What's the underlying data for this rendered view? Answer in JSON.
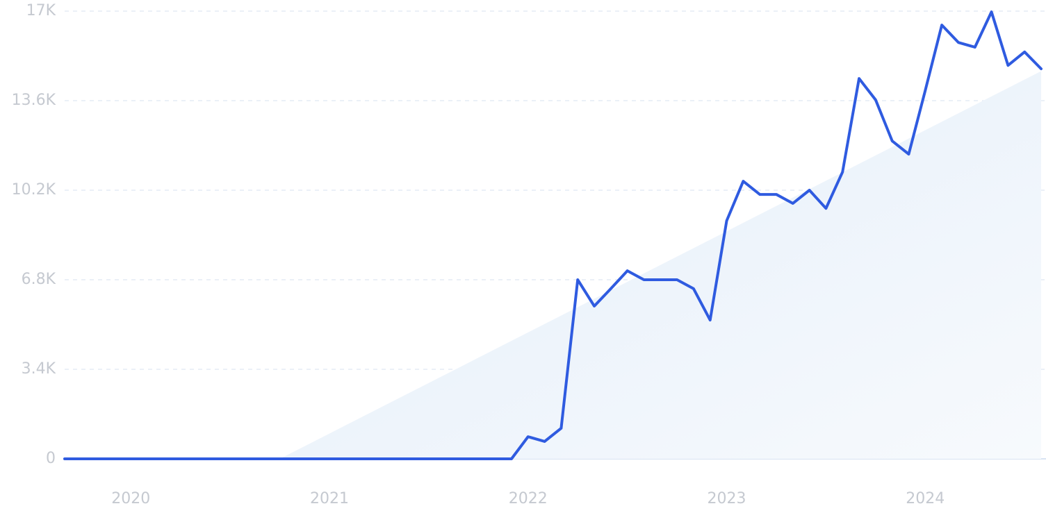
{
  "chart_data": {
    "type": "line",
    "categories": [
      null,
      null,
      null,
      null,
      "2020",
      null,
      null,
      null,
      null,
      null,
      null,
      null,
      null,
      null,
      null,
      null,
      "2021",
      null,
      null,
      null,
      null,
      null,
      null,
      null,
      null,
      null,
      null,
      null,
      "2022",
      null,
      null,
      null,
      null,
      null,
      null,
      null,
      null,
      null,
      null,
      null,
      "2023",
      null,
      null,
      null,
      null,
      null,
      null,
      null,
      null,
      null,
      null,
      null,
      "2024",
      null,
      null,
      null,
      null,
      null,
      null,
      null
    ],
    "values": [
      0,
      0,
      0,
      0,
      0,
      0,
      0,
      0,
      0,
      0,
      0,
      0,
      0,
      0,
      0,
      0,
      0,
      0,
      0,
      0,
      0,
      0,
      0,
      0,
      0,
      0,
      0,
      0,
      840,
      660,
      1160,
      6800,
      5800,
      6460,
      7140,
      6800,
      6800,
      6800,
      6460,
      5270,
      9040,
      10540,
      10040,
      10040,
      9700,
      10200,
      9510,
      10890,
      14440,
      13630,
      12070,
      11570,
      13990,
      16470,
      15810,
      15630,
      16970,
      14940,
      15450,
      14810
    ],
    "color": "#2f5be0",
    "trend": {
      "values": [
        null,
        null,
        null,
        null,
        null,
        null,
        null,
        null,
        null,
        null,
        null,
        null,
        null,
        0,
        320,
        640,
        960,
        1280,
        1600,
        1920,
        2240,
        2560,
        2880,
        3200,
        3520,
        3840,
        4160,
        4480,
        4800,
        5120,
        5440,
        5760,
        6080,
        6400,
        6720,
        7040,
        7360,
        7680,
        8000,
        8320,
        8640,
        8960,
        9280,
        9600,
        9920,
        10240,
        10560,
        10880,
        11200,
        11520,
        11840,
        12160,
        12480,
        12800,
        13120,
        13440,
        13760,
        14080,
        14400,
        14720
      ],
      "color": "#e6effa"
    },
    "ylim": [
      0,
      17000
    ],
    "yticks": [
      0,
      {
        "value": 3400,
        "label": "3.4K"
      },
      {
        "value": 6800,
        "label": "6.8K"
      },
      {
        "value": 10200,
        "label": "10.2K"
      },
      {
        "value": 13600,
        "label": "13.6K"
      },
      {
        "value": 17000,
        "label": "17K"
      }
    ],
    "grid": true
  }
}
